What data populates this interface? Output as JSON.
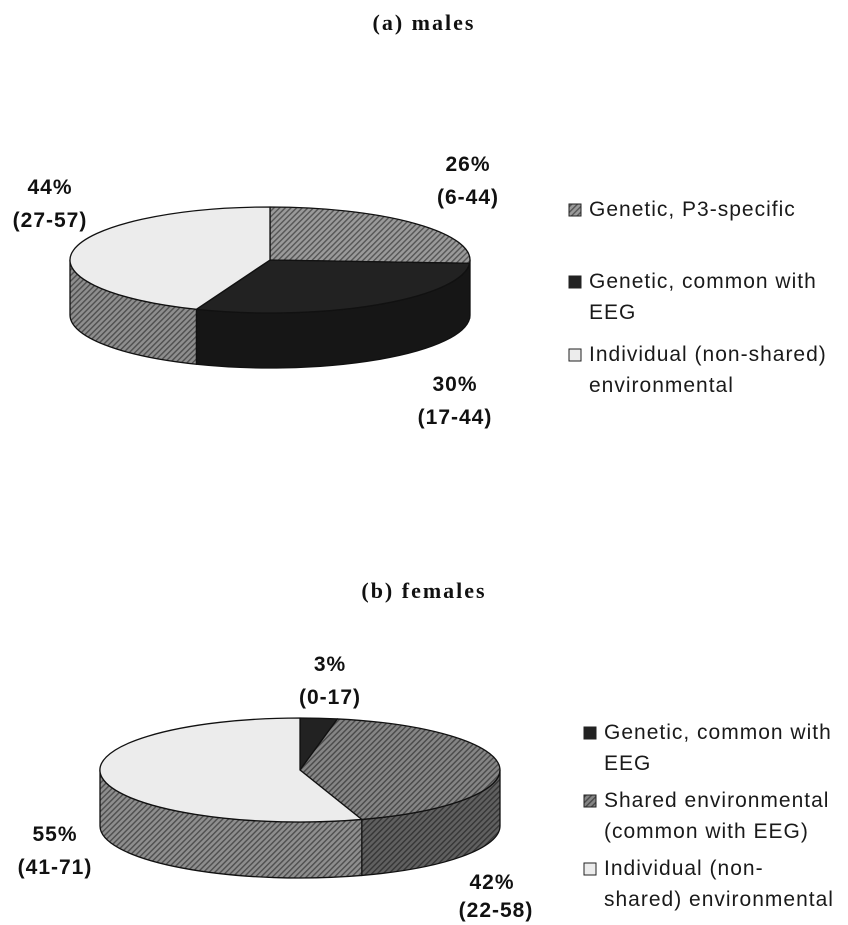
{
  "chart_data": [
    {
      "type": "pie",
      "title": "(a) males",
      "legend_position": "right",
      "slices": [
        {
          "name_lines": [
            "Genetic, P3-specific"
          ],
          "value": 26,
          "value_label": "26%",
          "ci": [
            6,
            44
          ],
          "range_label": "(6-44)",
          "fill": "#9a9a9a",
          "hatched": true,
          "side_fill": "#7a7a7a",
          "side_hatched": true
        },
        {
          "name_lines": [
            "Genetic, common with",
            "EEG"
          ],
          "value": 30,
          "value_label": "30%",
          "ci": [
            17,
            44
          ],
          "range_label": "(17-44)",
          "fill": "#222222",
          "hatched": false,
          "side_fill": "#161616",
          "side_hatched": false
        },
        {
          "name_lines": [
            "Individual (non-shared)",
            "environmental"
          ],
          "value": 44,
          "value_label": "44%",
          "ci": [
            27,
            57
          ],
          "range_label": "(27-57)",
          "fill": "#ececec",
          "hatched": false,
          "side_fill": "#8e8e8e",
          "side_hatched": true
        }
      ]
    },
    {
      "type": "pie",
      "title": "(b) females",
      "legend_position": "right",
      "slices": [
        {
          "name_lines": [
            "Genetic, common with",
            "EEG"
          ],
          "value": 3,
          "value_label": "3%",
          "ci": [
            0,
            17
          ],
          "range_label": "(0-17)",
          "fill": "#222222",
          "hatched": false,
          "side_fill": "#161616",
          "side_hatched": false
        },
        {
          "name_lines": [
            "Shared environmental",
            "(common with EEG)"
          ],
          "value": 42,
          "value_label": "42%",
          "ci": [
            22,
            58
          ],
          "range_label": "(22-58)",
          "fill": "#858585",
          "hatched": true,
          "side_fill": "#606060",
          "side_hatched": true
        },
        {
          "name_lines": [
            "Individual (non-",
            "shared) environmental"
          ],
          "value": 55,
          "value_label": "55%",
          "ci": [
            41,
            71
          ],
          "range_label": "(41-71)",
          "fill": "#ececec",
          "hatched": false,
          "side_fill": "#8e8e8e",
          "side_hatched": true
        }
      ]
    }
  ]
}
